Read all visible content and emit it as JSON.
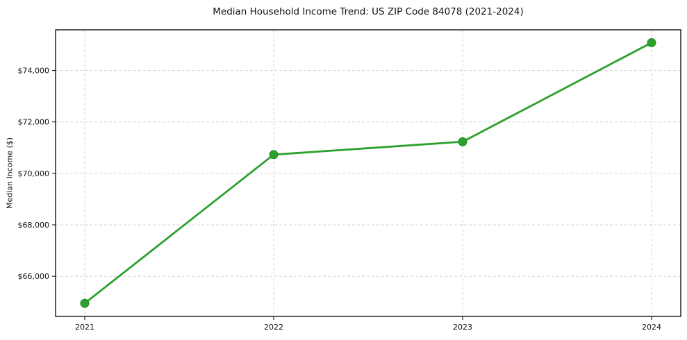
{
  "chart_data": {
    "type": "line",
    "title": "Median Household Income Trend: US ZIP Code 84078 (2021-2024)",
    "xlabel": "",
    "ylabel": "Median Income ($)",
    "categories": [
      "2021",
      "2022",
      "2023",
      "2024"
    ],
    "series": [
      {
        "name": "median-household-income",
        "values": [
          64950,
          70730,
          71230,
          75080
        ],
        "color": "#2ca02c",
        "marker": "circle"
      }
    ],
    "y_ticks": [
      66000,
      68000,
      70000,
      72000,
      74000
    ],
    "y_tick_labels": [
      "$66,000",
      "$68,000",
      "$70,000",
      "$72,000",
      "$74,000"
    ],
    "ylim": [
      64440,
      75580
    ],
    "grid": true,
    "grid_style": "dashed",
    "legend": false,
    "colors": {
      "line": "#2ca02c",
      "marker_fill": "#2ca02c",
      "marker_edge": "#238b23",
      "grid": "#d4d4d4",
      "axis": "#000000",
      "text": "#111111",
      "background": "#ffffff"
    }
  }
}
